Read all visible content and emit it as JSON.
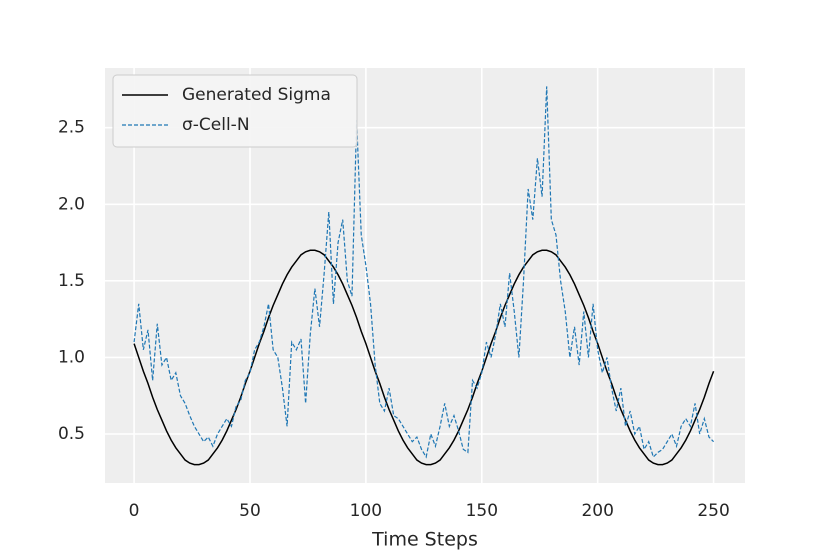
{
  "chart_data": {
    "type": "line",
    "xlabel": "Time Steps",
    "x": [
      0,
      2,
      4,
      6,
      8,
      10,
      12,
      14,
      16,
      18,
      20,
      22,
      24,
      26,
      28,
      30,
      32,
      34,
      36,
      38,
      40,
      42,
      44,
      46,
      48,
      50,
      52,
      54,
      56,
      58,
      60,
      62,
      64,
      66,
      68,
      70,
      72,
      74,
      76,
      78,
      80,
      82,
      84,
      86,
      88,
      90,
      92,
      94,
      96,
      98,
      100,
      102,
      104,
      106,
      108,
      110,
      112,
      114,
      116,
      118,
      120,
      122,
      124,
      126,
      128,
      130,
      132,
      134,
      136,
      138,
      140,
      142,
      144,
      146,
      148,
      150,
      152,
      154,
      156,
      158,
      160,
      162,
      164,
      166,
      168,
      170,
      172,
      174,
      176,
      178,
      180,
      182,
      184,
      186,
      188,
      190,
      192,
      194,
      196,
      198,
      200,
      202,
      204,
      206,
      208,
      210,
      212,
      214,
      216,
      218,
      220,
      222,
      224,
      226,
      228,
      230,
      232,
      234,
      236,
      238,
      240,
      242,
      244,
      246,
      248,
      250
    ],
    "series": [
      {
        "name": "Generated Sigma",
        "color": "#000000",
        "linestyle": "solid",
        "values": [
          1.09,
          1.0,
          0.91,
          0.83,
          0.74,
          0.66,
          0.59,
          0.52,
          0.46,
          0.41,
          0.37,
          0.33,
          0.31,
          0.3,
          0.3,
          0.31,
          0.33,
          0.37,
          0.41,
          0.46,
          0.52,
          0.59,
          0.66,
          0.74,
          0.83,
          0.91,
          1.0,
          1.09,
          1.17,
          1.26,
          1.34,
          1.41,
          1.48,
          1.54,
          1.59,
          1.63,
          1.67,
          1.69,
          1.7,
          1.7,
          1.69,
          1.67,
          1.63,
          1.59,
          1.54,
          1.48,
          1.41,
          1.34,
          1.26,
          1.17,
          1.09,
          1.0,
          0.91,
          0.83,
          0.74,
          0.66,
          0.59,
          0.52,
          0.46,
          0.41,
          0.37,
          0.33,
          0.31,
          0.3,
          0.3,
          0.31,
          0.33,
          0.37,
          0.41,
          0.46,
          0.52,
          0.59,
          0.66,
          0.74,
          0.83,
          0.91,
          1.0,
          1.09,
          1.17,
          1.26,
          1.34,
          1.41,
          1.48,
          1.54,
          1.59,
          1.63,
          1.67,
          1.69,
          1.7,
          1.7,
          1.69,
          1.67,
          1.63,
          1.59,
          1.54,
          1.48,
          1.41,
          1.34,
          1.26,
          1.17,
          1.09,
          1.0,
          0.91,
          0.83,
          0.74,
          0.66,
          0.59,
          0.52,
          0.46,
          0.41,
          0.37,
          0.33,
          0.31,
          0.3,
          0.3,
          0.31,
          0.33,
          0.37,
          0.41,
          0.46,
          0.52,
          0.59,
          0.66,
          0.74,
          0.83,
          0.91
        ]
      },
      {
        "name": "σ-Cell-N",
        "color": "#1f77b4",
        "linestyle": "dashed",
        "values": [
          1.1,
          1.35,
          1.05,
          1.18,
          0.85,
          1.22,
          0.95,
          1.0,
          0.85,
          0.9,
          0.75,
          0.7,
          0.62,
          0.55,
          0.5,
          0.45,
          0.48,
          0.42,
          0.5,
          0.55,
          0.6,
          0.55,
          0.68,
          0.72,
          0.85,
          0.9,
          1.05,
          1.1,
          1.2,
          1.35,
          1.05,
          1.0,
          0.8,
          0.55,
          1.1,
          1.05,
          1.12,
          0.7,
          1.15,
          1.45,
          1.2,
          1.55,
          1.95,
          1.35,
          1.75,
          1.9,
          1.5,
          1.4,
          2.55,
          1.8,
          1.6,
          1.35,
          0.95,
          0.7,
          0.65,
          0.8,
          0.62,
          0.6,
          0.55,
          0.5,
          0.45,
          0.48,
          0.4,
          0.35,
          0.5,
          0.42,
          0.55,
          0.7,
          0.55,
          0.62,
          0.52,
          0.4,
          0.38,
          0.85,
          0.8,
          0.9,
          1.1,
          1.0,
          1.15,
          1.35,
          1.2,
          1.55,
          1.3,
          1.0,
          1.5,
          2.1,
          1.9,
          2.3,
          2.05,
          2.77,
          1.9,
          1.8,
          1.5,
          1.3,
          1.0,
          1.2,
          0.95,
          1.3,
          1.0,
          1.35,
          1.05,
          0.9,
          1.0,
          0.8,
          0.65,
          0.8,
          0.55,
          0.65,
          0.5,
          0.55,
          0.4,
          0.45,
          0.35,
          0.38,
          0.4,
          0.45,
          0.5,
          0.42,
          0.55,
          0.6,
          0.55,
          0.7,
          0.5,
          0.6,
          0.48,
          0.45
        ]
      }
    ],
    "xlim": [
      -12.55,
      263.55
    ],
    "ylim": [
      0.18,
      2.89
    ],
    "xticks": [
      0,
      50,
      100,
      150,
      200,
      250
    ],
    "yticks": [
      0.5,
      {
        "value": 1,
        "label": "1.0"
      },
      1.5,
      {
        "value": 2,
        "label": "2.0"
      },
      2.5
    ],
    "grid": true,
    "legend": "upper left"
  }
}
